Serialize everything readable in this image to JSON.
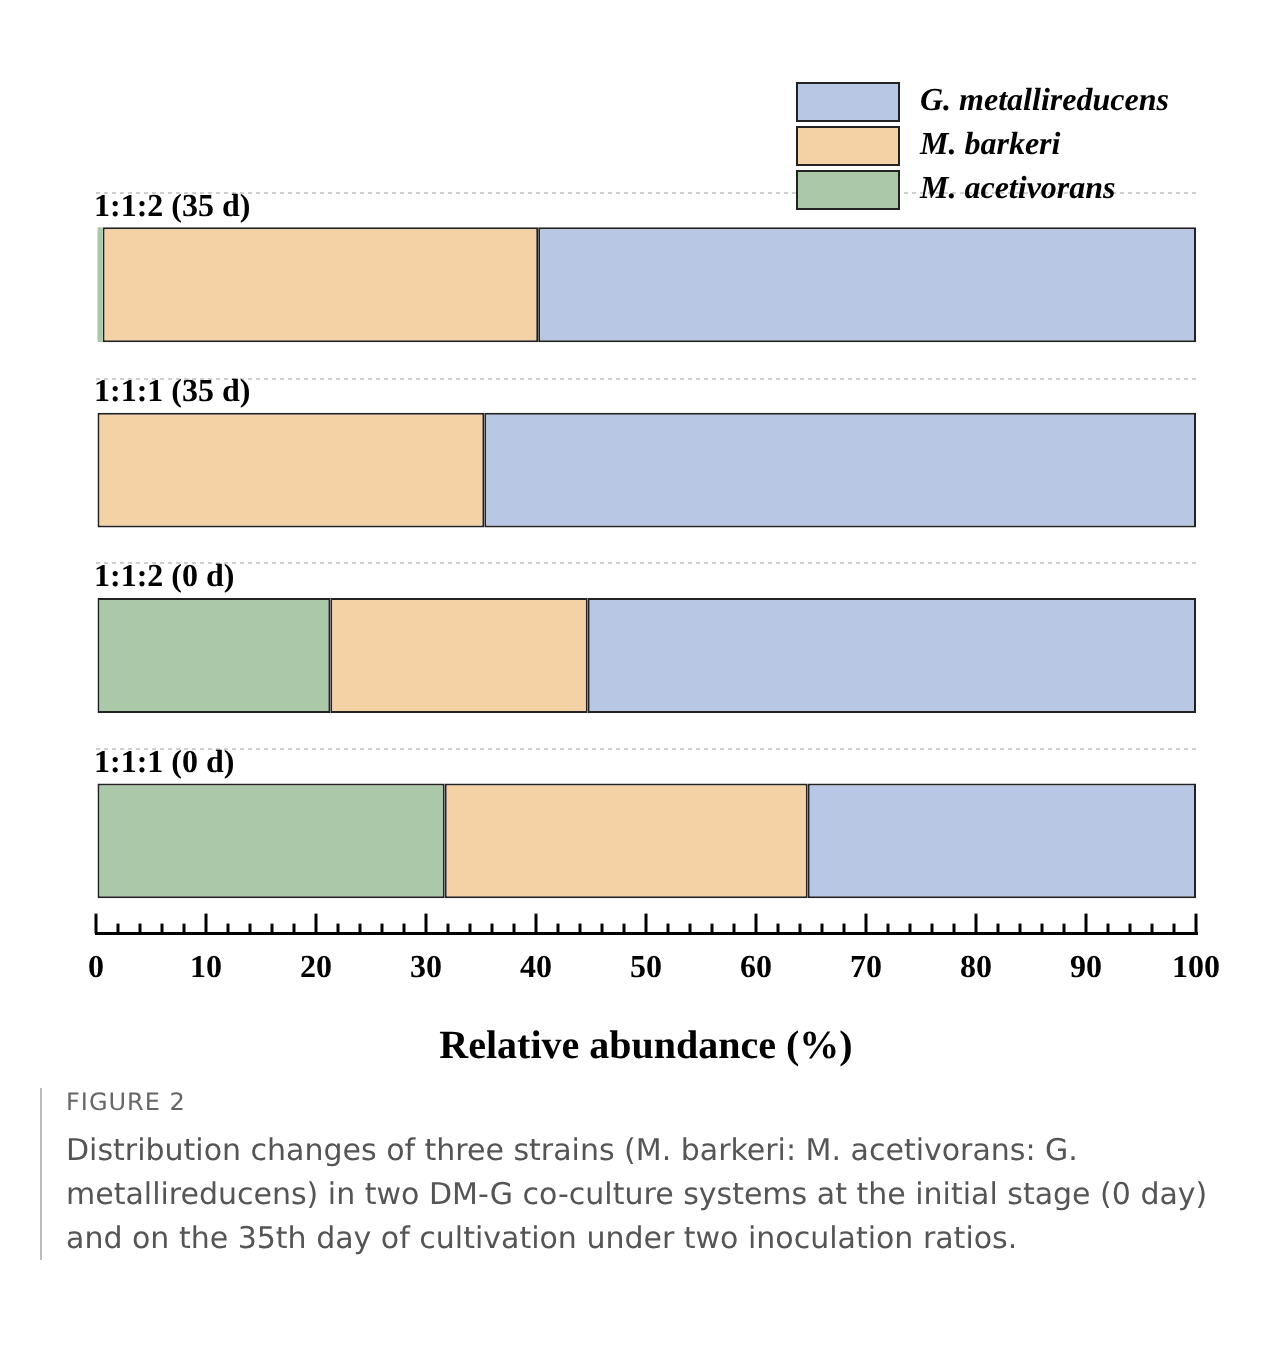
{
  "chart_data": {
    "type": "bar",
    "orientation": "horizontal",
    "stacked": true,
    "categories": [
      "1:1:2 (35 d)",
      "1:1:1 (35 d)",
      "1:1:2 (0 d)",
      "1:1:1 (0 d)"
    ],
    "series": [
      {
        "name": "M. acetivorans",
        "color": "#abc9a8",
        "values": [
          0.6,
          null,
          21.3,
          31.7
        ]
      },
      {
        "name": "M. barkeri",
        "color": "#f4d2a5",
        "values": [
          39.6,
          35.3,
          23.4,
          33.0
        ]
      },
      {
        "name": "G. metallireducens",
        "color": "#b8c7e3",
        "values": [
          59.8,
          64.7,
          55.3,
          35.3
        ]
      }
    ],
    "xlim": [
      0,
      100
    ],
    "xticks": [
      0,
      {
        "value": 2,
        "label": null
      },
      {
        "value": 4,
        "label": null
      },
      {
        "value": 6,
        "label": null
      },
      {
        "value": 8,
        "label": null
      },
      10,
      {
        "value": 12,
        "label": null
      },
      {
        "value": 14,
        "label": null
      },
      {
        "value": 16,
        "label": null
      },
      {
        "value": 18,
        "label": null
      },
      20,
      {
        "value": 22,
        "label": null
      },
      {
        "value": 24,
        "label": null
      },
      {
        "value": 26,
        "label": null
      },
      {
        "value": 28,
        "label": null
      },
      30,
      {
        "value": 32,
        "label": null
      },
      {
        "value": 34,
        "label": null
      },
      {
        "value": 36,
        "label": null
      },
      {
        "value": 38,
        "label": null
      },
      40,
      {
        "value": 42,
        "label": null
      },
      {
        "value": 44,
        "label": null
      },
      {
        "value": 46,
        "label": null
      },
      {
        "value": 48,
        "label": null
      },
      50,
      {
        "value": 52,
        "label": null
      },
      {
        "value": 54,
        "label": null
      },
      {
        "value": 56,
        "label": null
      },
      {
        "value": 58,
        "label": null
      },
      60,
      {
        "value": 62,
        "label": null
      },
      {
        "value": 64,
        "label": null
      },
      {
        "value": 66,
        "label": null
      },
      {
        "value": 68,
        "label": null
      },
      70,
      {
        "value": 72,
        "label": null
      },
      {
        "value": 74,
        "label": null
      },
      {
        "value": 76,
        "label": null
      },
      {
        "value": 78,
        "label": null
      },
      80,
      {
        "value": 82,
        "label": null
      },
      {
        "value": 84,
        "label": null
      },
      {
        "value": 86,
        "label": null
      },
      {
        "value": 88,
        "label": null
      },
      90,
      {
        "value": 92,
        "label": null
      },
      {
        "value": 94,
        "label": null
      },
      {
        "value": 96,
        "label": null
      },
      {
        "value": 98,
        "label": null
      },
      100
    ],
    "xlabel": "Relative abundance (%)",
    "legend": "top right",
    "grid": "y",
    "annotations": [
      "FIGURE 2",
      "Distribution changes of three strains (M. barkeri: M. acetivorans: G. metallireducens) in two DM-G co-culture systems at the initial stage (0 day) and on the 35th day of cultivation under two inoculation ratios."
    ]
  }
}
